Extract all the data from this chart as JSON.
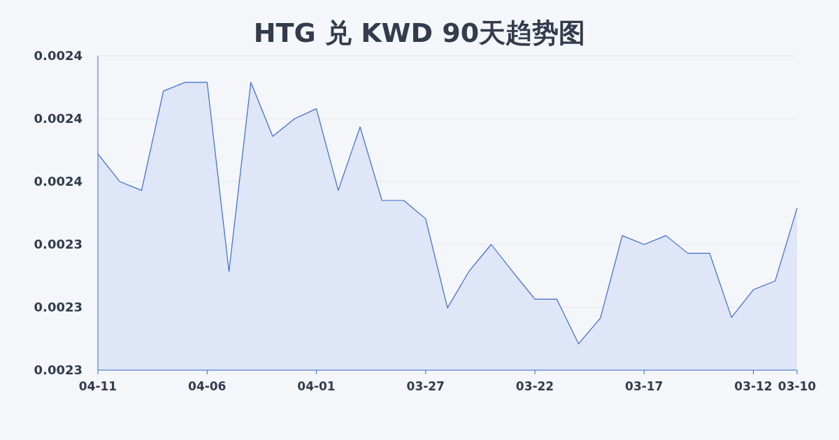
{
  "chart_data": {
    "type": "area",
    "title": "HTG 兑 KWD 90天趋势图",
    "categories": [
      "04-11",
      null,
      null,
      null,
      null,
      "04-06",
      null,
      null,
      null,
      null,
      "04-01",
      null,
      null,
      null,
      null,
      "03-27",
      null,
      null,
      null,
      null,
      "03-22",
      null,
      null,
      null,
      null,
      "03-17",
      null,
      null,
      null,
      null,
      "03-12",
      null,
      "03-10"
    ],
    "values": [
      0.0023544,
      0.00235,
      0.0023486,
      0.0023644,
      0.0023658,
      0.0023658,
      0.0023357,
      0.0023658,
      0.0023572,
      0.00236,
      0.0023616,
      0.0023486,
      0.0023587,
      0.002347,
      0.002347,
      0.0023441,
      0.0023299,
      0.0023358,
      0.00234,
      0.0023356,
      0.0023313,
      0.0023313,
      0.0023242,
      0.0023283,
      0.0023414,
      0.00234,
      0.0023414,
      0.0023386,
      0.0023386,
      0.0023284,
      0.0023328,
      0.0023342,
      0.0023458
    ],
    "color": "#3a6bd0",
    "ylim": [
      0.00232,
      0.00237
    ],
    "yticks": [
      {
        "value": 0.00232,
        "label": "0.0023"
      },
      {
        "value": 0.00233,
        "label": "0.0023"
      },
      {
        "value": 0.00234,
        "label": "0.0023"
      },
      {
        "value": 0.00235,
        "label": "0.0024"
      },
      {
        "value": 0.00236,
        "label": "0.0024"
      },
      {
        "value": 0.00237,
        "label": "0.0024"
      }
    ],
    "grid": "y"
  }
}
